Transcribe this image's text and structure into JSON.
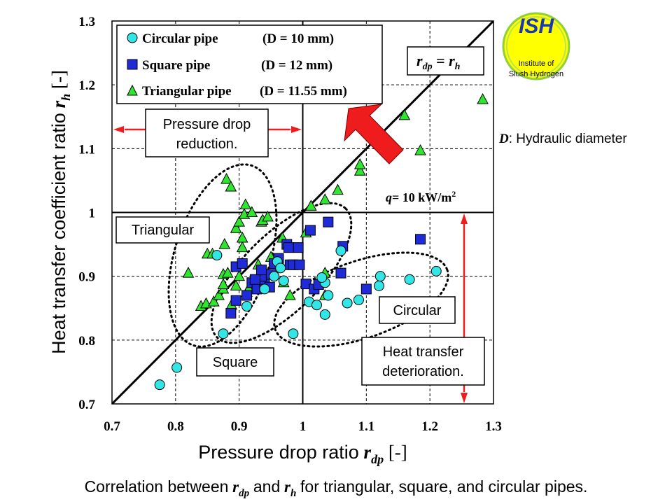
{
  "chart_data": {
    "type": "scatter",
    "title": "",
    "xlabel": "Pressure drop ratio",
    "xlabel_symbol": "r",
    "xlabel_sub": "dp",
    "xlabel_unit": "[-]",
    "ylabel": "Heat transfer coefficient ratio",
    "ylabel_symbol": "r",
    "ylabel_sub": "h",
    "ylabel_unit": "[-]",
    "xlim": [
      0.7,
      1.3
    ],
    "ylim": [
      0.7,
      1.3
    ],
    "xticks": [
      "0.7",
      "0.8",
      "0.9",
      "1",
      "1.1",
      "1.2",
      "1.3"
    ],
    "yticks": [
      "0.7",
      "0.8",
      "0.9",
      "1",
      "1.1",
      "1.2",
      "1.3"
    ],
    "grid": true,
    "reference_line": {
      "label_r": "r",
      "label_dp": "dp",
      "label_eq": "=",
      "label_h": "h"
    },
    "series": [
      {
        "name": "Circular pipe",
        "diameter": "(D = 10 mm)",
        "marker": "circle",
        "color": "#33e6e6",
        "points": [
          [
            0.775,
            0.73
          ],
          [
            0.802,
            0.757
          ],
          [
            0.875,
            0.81
          ],
          [
            0.912,
            0.853
          ],
          [
            0.865,
            0.933
          ],
          [
            0.96,
            0.923
          ],
          [
            0.965,
            0.913
          ],
          [
            0.955,
            0.9
          ],
          [
            0.94,
            0.88
          ],
          [
            0.97,
            0.893
          ],
          [
            0.985,
            0.81
          ],
          [
            1.01,
            0.86
          ],
          [
            1.022,
            0.855
          ],
          [
            1.035,
            0.84
          ],
          [
            1.035,
            0.89
          ],
          [
            1.04,
            0.87
          ],
          [
            1.06,
            0.94
          ],
          [
            1.07,
            0.858
          ],
          [
            1.088,
            0.863
          ],
          [
            1.12,
            0.885
          ],
          [
            1.122,
            0.9
          ],
          [
            1.168,
            0.895
          ],
          [
            1.21,
            0.908
          ],
          [
            1.03,
            0.898
          ]
        ]
      },
      {
        "name": "Square pipe",
        "diameter": "(D = 12 mm)",
        "marker": "square",
        "color": "#1e2bd6",
        "points": [
          [
            0.887,
            0.842
          ],
          [
            0.895,
            0.862
          ],
          [
            0.912,
            0.87
          ],
          [
            0.92,
            0.89
          ],
          [
            0.928,
            0.88
          ],
          [
            0.94,
            0.883
          ],
          [
            0.94,
            0.895
          ],
          [
            0.948,
            0.883
          ],
          [
            0.95,
            0.903
          ],
          [
            0.955,
            0.92
          ],
          [
            0.962,
            0.928
          ],
          [
            0.895,
            0.915
          ],
          [
            0.905,
            0.92
          ],
          [
            0.935,
            0.9
          ],
          [
            0.925,
            0.895
          ],
          [
            0.935,
            0.91
          ],
          [
            0.975,
            0.95
          ],
          [
            0.978,
            0.945
          ],
          [
            0.98,
            0.918
          ],
          [
            0.985,
            0.918
          ],
          [
            0.993,
            0.945
          ],
          [
            0.995,
            0.918
          ],
          [
            1.005,
            0.888
          ],
          [
            1.012,
            0.972
          ],
          [
            1.018,
            0.88
          ],
          [
            1.025,
            0.887
          ],
          [
            1.04,
            0.985
          ],
          [
            1.06,
            0.905
          ],
          [
            1.063,
            0.947
          ],
          [
            1.1,
            0.88
          ],
          [
            1.185,
            0.958
          ]
        ]
      },
      {
        "name": "Triangular pipe",
        "diameter": "(D = 11.55 mm)",
        "marker": "triangle",
        "color": "#2ee62e",
        "points": [
          [
            0.82,
            0.905
          ],
          [
            0.84,
            0.853
          ],
          [
            0.848,
            0.857
          ],
          [
            0.85,
            0.935
          ],
          [
            0.858,
            0.935
          ],
          [
            0.86,
            0.86
          ],
          [
            0.868,
            0.87
          ],
          [
            0.875,
            0.88
          ],
          [
            0.875,
            0.887
          ],
          [
            0.875,
            0.903
          ],
          [
            0.877,
            0.95
          ],
          [
            0.882,
            0.905
          ],
          [
            0.88,
            1.052
          ],
          [
            0.887,
            1.04
          ],
          [
            0.888,
            0.855
          ],
          [
            0.895,
            0.885
          ],
          [
            0.895,
            0.975
          ],
          [
            0.9,
            0.9
          ],
          [
            0.9,
            0.985
          ],
          [
            0.905,
            0.945
          ],
          [
            0.905,
            0.96
          ],
          [
            0.908,
            0.997
          ],
          [
            0.91,
            1.012
          ],
          [
            0.912,
            0.875
          ],
          [
            0.915,
            0.88
          ],
          [
            0.92,
            1.0
          ],
          [
            0.93,
            0.918
          ],
          [
            0.935,
            0.985
          ],
          [
            0.937,
            0.988
          ],
          [
            0.945,
            0.993
          ],
          [
            0.95,
            0.93
          ],
          [
            0.968,
            0.96
          ],
          [
            0.97,
            0.89
          ],
          [
            0.98,
            0.87
          ],
          [
            1.005,
            0.968
          ],
          [
            1.013,
            1.01
          ],
          [
            1.035,
            0.87
          ],
          [
            1.035,
            0.905
          ],
          [
            1.035,
            1.02
          ],
          [
            1.055,
            1.035
          ],
          [
            1.09,
            1.065
          ],
          [
            1.09,
            1.075
          ],
          [
            1.16,
            1.152
          ],
          [
            1.185,
            1.097
          ],
          [
            1.283,
            1.177
          ]
        ]
      }
    ],
    "annotations": {
      "condition_q": "q",
      "condition_value": "= 10 kW/m",
      "condition_sup": "2",
      "hydraulic_symbol": "D",
      "hydraulic_text": ": Hydraulic diameter",
      "pressure_box": [
        "Pressure drop",
        "reduction."
      ],
      "heat_box": [
        "Heat transfer",
        "deterioration."
      ],
      "label_triangular": "Triangular",
      "label_square": "Square",
      "label_circular": "Circular"
    },
    "logo": {
      "title": "ISH",
      "line1": "Institute of",
      "line2": "Slush Hydrogen"
    }
  },
  "caption": {
    "prefix": "Correlation between",
    "sym_r": "r",
    "sub_dp": "dp",
    "middle": "and",
    "sub_h": "h",
    "suffix": "for triangular, square, and circular pipes."
  },
  "colors": {
    "arrow_red": "#ee1c1c",
    "logo_yellow": "#ffff00",
    "logo_green": "#8ecf3a",
    "logo_blue": "#1b36b5"
  }
}
